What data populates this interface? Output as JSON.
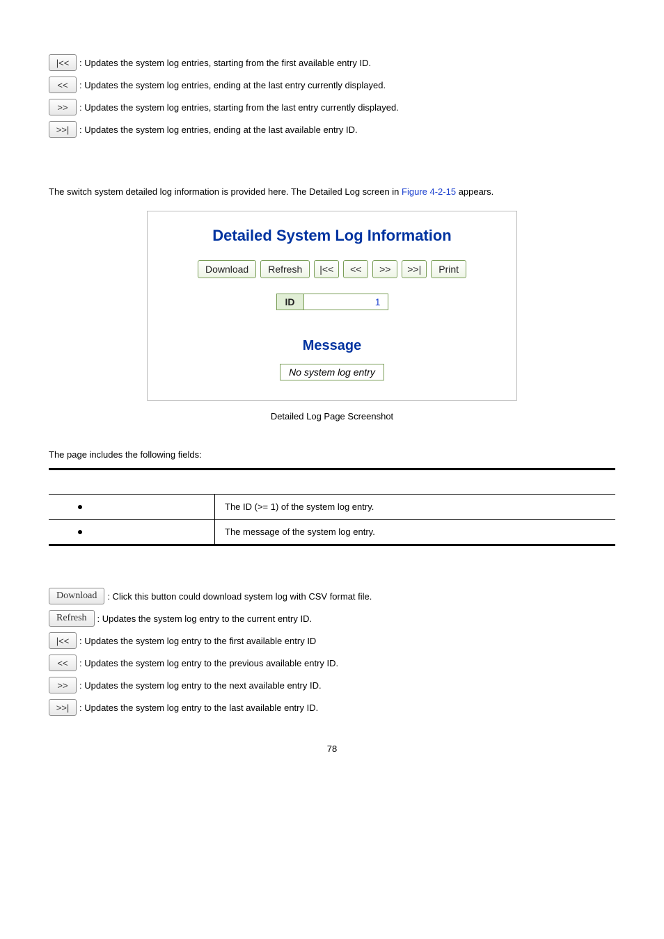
{
  "top_nav_descriptions": [
    {
      "btn": "|<<",
      "text": ": Updates the system log entries, starting from the first available entry ID."
    },
    {
      "btn": "<<",
      "text": ": Updates the system log entries, ending at the last entry currently displayed."
    },
    {
      "btn": ">>",
      "text": ": Updates the system log entries, starting from the last entry currently displayed."
    },
    {
      "btn": ">>|",
      "text": ": Updates the system log entries, ending at the last available entry ID."
    }
  ],
  "intro": {
    "prefix": "The switch system detailed log information is provided here. The Detailed Log screen in ",
    "link": "Figure 4-2-15",
    "suffix": " appears."
  },
  "screenshot": {
    "title": "Detailed System Log Information",
    "buttons": {
      "download": "Download",
      "refresh": "Refresh",
      "first": "|<<",
      "prev": "<<",
      "next": ">>",
      "last": ">>|",
      "print": "Print"
    },
    "id_label": "ID",
    "id_value": "1",
    "message_title": "Message",
    "message_body": "No system log entry"
  },
  "caption": "Detailed Log Page Screenshot",
  "fields_intro": "The page includes the following fields:",
  "fields": [
    {
      "desc": "The ID (>= 1) of the system log entry."
    },
    {
      "desc": "The message of the system log entry."
    }
  ],
  "bottom_buttons": [
    {
      "btn": "Download",
      "text_btn": true,
      "text": ": Click this button could download system log with CSV format file."
    },
    {
      "btn": "Refresh",
      "text_btn": true,
      "text": ": Updates the system log entry to the current entry ID."
    },
    {
      "btn": "|<<",
      "text_btn": false,
      "text": ": Updates the system log entry to the first available entry ID"
    },
    {
      "btn": "<<",
      "text_btn": false,
      "text": ": Updates the system log entry to the previous available entry ID."
    },
    {
      "btn": ">>",
      "text_btn": false,
      "text": ": Updates the system log entry to the next available entry ID."
    },
    {
      "btn": ">>|",
      "text_btn": false,
      "text": ": Updates the system log entry to the last available entry ID."
    }
  ],
  "page_number": "78"
}
